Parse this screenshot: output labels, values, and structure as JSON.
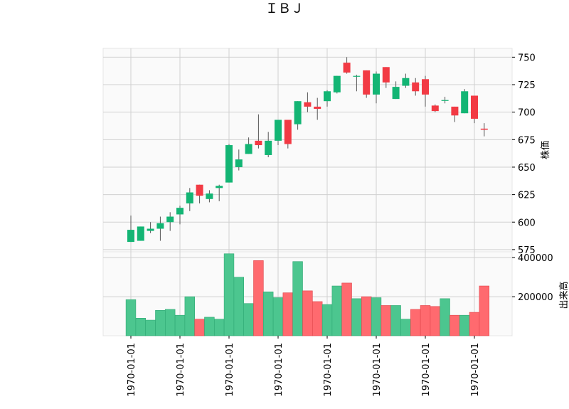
{
  "chart_data": {
    "type": "candlestick",
    "title": "ＩＢＪ",
    "price_label": "株価",
    "volume_label": "出来高",
    "colors": {
      "up": "#13b574",
      "down": "#f23a44",
      "up_volume": "#4cc68f",
      "down_volume": "#ff6a6f",
      "wick": "#555555",
      "grid": "#d0d0d0",
      "panel_bg": "#fafafa"
    },
    "price_ylim": [
      573,
      758
    ],
    "price_ticks": [
      575,
      600,
      625,
      650,
      675,
      700,
      725,
      750
    ],
    "volume_ylim": [
      0,
      430000
    ],
    "volume_ticks": [
      200000,
      400000
    ],
    "volume_tick_labels": [
      "200000",
      "400000"
    ],
    "x_tick_labels": [
      "1970-01-01",
      "1970-01-01",
      "1970-01-01",
      "1970-01-01",
      "1970-01-01",
      "1970-01-01",
      "1970-01-01",
      "1970-01-01"
    ],
    "x_tick_positions": [
      0,
      5,
      10,
      15,
      20,
      25,
      30,
      35
    ],
    "candles": [
      {
        "open": 582,
        "high": 606,
        "low": 582,
        "close": 593,
        "volume": 185000
      },
      {
        "open": 583,
        "high": 596,
        "low": 583,
        "close": 596,
        "volume": 90000
      },
      {
        "open": 592,
        "high": 600,
        "low": 590,
        "close": 594,
        "volume": 80000
      },
      {
        "open": 594,
        "high": 605,
        "low": 583,
        "close": 599,
        "volume": 130000
      },
      {
        "open": 600,
        "high": 609,
        "low": 592,
        "close": 605,
        "volume": 135000
      },
      {
        "open": 607,
        "high": 615,
        "low": 598,
        "close": 613,
        "volume": 105000
      },
      {
        "open": 617,
        "high": 631,
        "low": 610,
        "close": 627,
        "volume": 200000
      },
      {
        "open": 634,
        "high": 634,
        "low": 617,
        "close": 624,
        "volume": 85000
      },
      {
        "open": 621,
        "high": 629,
        "low": 618,
        "close": 626,
        "volume": 95000
      },
      {
        "open": 631,
        "high": 634,
        "low": 619,
        "close": 633,
        "volume": 85000
      },
      {
        "open": 636,
        "high": 671,
        "low": 636,
        "close": 670,
        "volume": 420000
      },
      {
        "open": 650,
        "high": 666,
        "low": 647,
        "close": 657,
        "volume": 300000
      },
      {
        "open": 662,
        "high": 677,
        "low": 662,
        "close": 671,
        "volume": 165000
      },
      {
        "open": 674,
        "high": 698,
        "low": 667,
        "close": 670,
        "volume": 385000
      },
      {
        "open": 661,
        "high": 682,
        "low": 659,
        "close": 674,
        "volume": 225000
      },
      {
        "open": 674,
        "high": 693,
        "low": 670,
        "close": 693,
        "volume": 195000
      },
      {
        "open": 693,
        "high": 693,
        "low": 667,
        "close": 671,
        "volume": 220000
      },
      {
        "open": 689,
        "high": 710,
        "low": 684,
        "close": 710,
        "volume": 380000
      },
      {
        "open": 709,
        "high": 718,
        "low": 700,
        "close": 705,
        "volume": 230000
      },
      {
        "open": 705,
        "high": 713,
        "low": 693,
        "close": 703,
        "volume": 175000
      },
      {
        "open": 710,
        "high": 720,
        "low": 705,
        "close": 719,
        "volume": 160000
      },
      {
        "open": 718,
        "high": 733,
        "low": 717,
        "close": 733,
        "volume": 255000
      },
      {
        "open": 745,
        "high": 750,
        "low": 735,
        "close": 736,
        "volume": 270000
      },
      {
        "open": 733,
        "high": 734,
        "low": 719,
        "close": 733,
        "volume": 190000
      },
      {
        "open": 738,
        "high": 738,
        "low": 713,
        "close": 716,
        "volume": 200000
      },
      {
        "open": 716,
        "high": 737,
        "low": 708,
        "close": 735,
        "volume": 195000
      },
      {
        "open": 741,
        "high": 741,
        "low": 722,
        "close": 727,
        "volume": 155000
      },
      {
        "open": 712,
        "high": 728,
        "low": 712,
        "close": 723,
        "volume": 155000
      },
      {
        "open": 724,
        "high": 735,
        "low": 722,
        "close": 731,
        "volume": 85000
      },
      {
        "open": 727,
        "high": 731,
        "low": 715,
        "close": 719,
        "volume": 135000
      },
      {
        "open": 730,
        "high": 733,
        "low": 705,
        "close": 716,
        "volume": 155000
      },
      {
        "open": 706,
        "high": 707,
        "low": 700,
        "close": 701,
        "volume": 150000
      },
      {
        "open": 711,
        "high": 714,
        "low": 708,
        "close": 711,
        "volume": 190000
      },
      {
        "open": 705,
        "high": 705,
        "low": 691,
        "close": 697,
        "volume": 105000
      },
      {
        "open": 699,
        "high": 721,
        "low": 699,
        "close": 719,
        "volume": 105000
      },
      {
        "open": 715,
        "high": 715,
        "low": 690,
        "close": 694,
        "volume": 120000
      },
      {
        "open": 685,
        "high": 690,
        "low": 678,
        "close": 684,
        "volume": 255000
      }
    ]
  }
}
